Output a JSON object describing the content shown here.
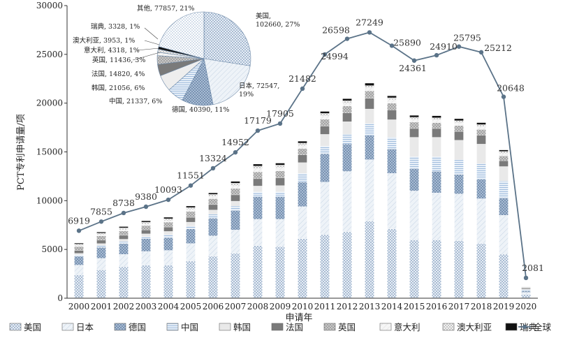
{
  "chart_data": [
    {
      "type": "bar",
      "stacked": true,
      "title": "",
      "xlabel": "申请年",
      "ylabel": "PCT专利申请量/项",
      "ylim": [
        0,
        30000
      ],
      "y_ticks": [
        "0",
        "5000",
        "10000",
        "15000",
        "20000",
        "25000",
        "30000"
      ],
      "categories": [
        "2000",
        "2001",
        "2002",
        "2003",
        "2004",
        "2005",
        "2006",
        "2007",
        "2008",
        "2009",
        "2010",
        "2011",
        "2012",
        "2013",
        "2014",
        "2015",
        "2016",
        "2017",
        "2018",
        "2019",
        "2020"
      ],
      "grid": false,
      "legend_position": "bottom",
      "series": [
        {
          "name": "美国",
          "color": "#6f8fb3",
          "values": [
            2400,
            2900,
            3200,
            3400,
            3400,
            3800,
            4300,
            4600,
            5400,
            5300,
            6100,
            6500,
            6800,
            7900,
            7100,
            6000,
            6000,
            5900,
            5600,
            4500,
            400
          ]
        },
        {
          "name": "日本",
          "color": "#dfe8f2",
          "values": [
            1000,
            1200,
            1300,
            1400,
            1500,
            1800,
            2100,
            2400,
            2700,
            2800,
            3300,
            5400,
            6200,
            6300,
            5700,
            5000,
            4800,
            4800,
            4600,
            4000,
            200
          ]
        },
        {
          "name": "德国",
          "color": "#5d7fa6",
          "values": [
            900,
            1100,
            1100,
            1300,
            1300,
            1500,
            1800,
            2000,
            2300,
            2300,
            2500,
            2900,
            2800,
            2500,
            2500,
            2300,
            2200,
            2000,
            2000,
            1800,
            150
          ]
        },
        {
          "name": "中国",
          "color": "#a8c2de",
          "values": [
            150,
            200,
            200,
            200,
            300,
            300,
            400,
            450,
            500,
            500,
            900,
            800,
            1000,
            1200,
            1200,
            1200,
            1500,
            1500,
            1600,
            1700,
            100
          ]
        },
        {
          "name": "韩国",
          "color": "#e6e6e6",
          "values": [
            150,
            200,
            250,
            300,
            350,
            400,
            450,
            500,
            600,
            650,
            1100,
            1200,
            1300,
            1500,
            1800,
            2000,
            2000,
            2000,
            2000,
            1500,
            100
          ]
        },
        {
          "name": "法国",
          "color": "#777777",
          "values": [
            300,
            350,
            400,
            400,
            450,
            500,
            550,
            650,
            750,
            800,
            800,
            850,
            900,
            1100,
            1000,
            900,
            900,
            900,
            900,
            600,
            100
          ]
        },
        {
          "name": "英国",
          "color": "#a9a9a9",
          "values": [
            400,
            450,
            450,
            450,
            500,
            600,
            600,
            650,
            700,
            700,
            650,
            700,
            700,
            750,
            700,
            650,
            600,
            600,
            600,
            500,
            50
          ]
        },
        {
          "name": "意大利",
          "color": "#f0f0f0",
          "values": [
            100,
            120,
            120,
            150,
            150,
            200,
            250,
            300,
            350,
            350,
            300,
            350,
            300,
            350,
            350,
            300,
            300,
            300,
            300,
            250,
            20
          ]
        },
        {
          "name": "澳大利亚",
          "color": "#c4c4c4",
          "values": [
            150,
            150,
            200,
            200,
            200,
            200,
            200,
            250,
            250,
            250,
            250,
            250,
            250,
            200,
            200,
            200,
            200,
            200,
            200,
            200,
            20
          ]
        },
        {
          "name": "瑞典",
          "color": "#111111",
          "values": [
            100,
            110,
            120,
            130,
            150,
            150,
            150,
            180,
            200,
            200,
            200,
            200,
            200,
            250,
            200,
            200,
            200,
            200,
            200,
            150,
            10
          ]
        }
      ],
      "line_series": {
        "name": "全球",
        "color": "#5b7388",
        "values": [
          6919,
          7855,
          8738,
          9380,
          10093,
          11551,
          13324,
          14952,
          17179,
          17905,
          21482,
          24994,
          26598,
          27249,
          25890,
          24361,
          24910,
          25795,
          25212,
          20648,
          2081
        ],
        "labels": [
          "6919",
          "7855",
          "8738",
          "9380",
          "10093",
          "11551",
          "13324",
          "14952",
          "17179",
          "17905",
          "21482",
          "24994",
          "26598",
          "27249",
          "25890",
          "24361",
          "24910",
          "25795",
          "25212",
          "20648",
          "2081"
        ]
      }
    },
    {
      "type": "pie",
      "title": "",
      "slices": [
        {
          "name": "美国",
          "value": 102660,
          "label": "美国,\n102660, 27%",
          "color": "#b8cce3"
        },
        {
          "name": "日本",
          "value": 72547,
          "label": "日本, 72547,\n19%",
          "color": "#dde7f2"
        },
        {
          "name": "德国",
          "value": 40390,
          "label": "德国, 40390, 11%",
          "color": "#7f9dc0"
        },
        {
          "name": "中国",
          "value": 21337,
          "label": "中国, 21337, 6%",
          "color": "#c9daf0"
        },
        {
          "name": "韩国",
          "value": 21056,
          "label": "韩国, 21056, 6%",
          "color": "#eeeeee"
        },
        {
          "name": "法国",
          "value": 14820,
          "label": "法国, 14820, 4%",
          "color": "#8a8a8a"
        },
        {
          "name": "英国",
          "value": 11436,
          "label": "英国, 11436, 3%",
          "color": "#b0b0b0"
        },
        {
          "name": "意大利",
          "value": 4318,
          "label": "意大利, 4318, 1%",
          "color": "#f4f4f4"
        },
        {
          "name": "澳大利亚",
          "value": 3953,
          "label": "澳大利亚, 3953, 1%",
          "color": "#cccccc"
        },
        {
          "name": "瑞典",
          "value": 3328,
          "label": "瑞典, 3328, 1%",
          "color": "#111111"
        },
        {
          "name": "其他",
          "value": 77857,
          "label": "其他, 77857, 21%",
          "color": "#aec3dc"
        }
      ]
    }
  ]
}
